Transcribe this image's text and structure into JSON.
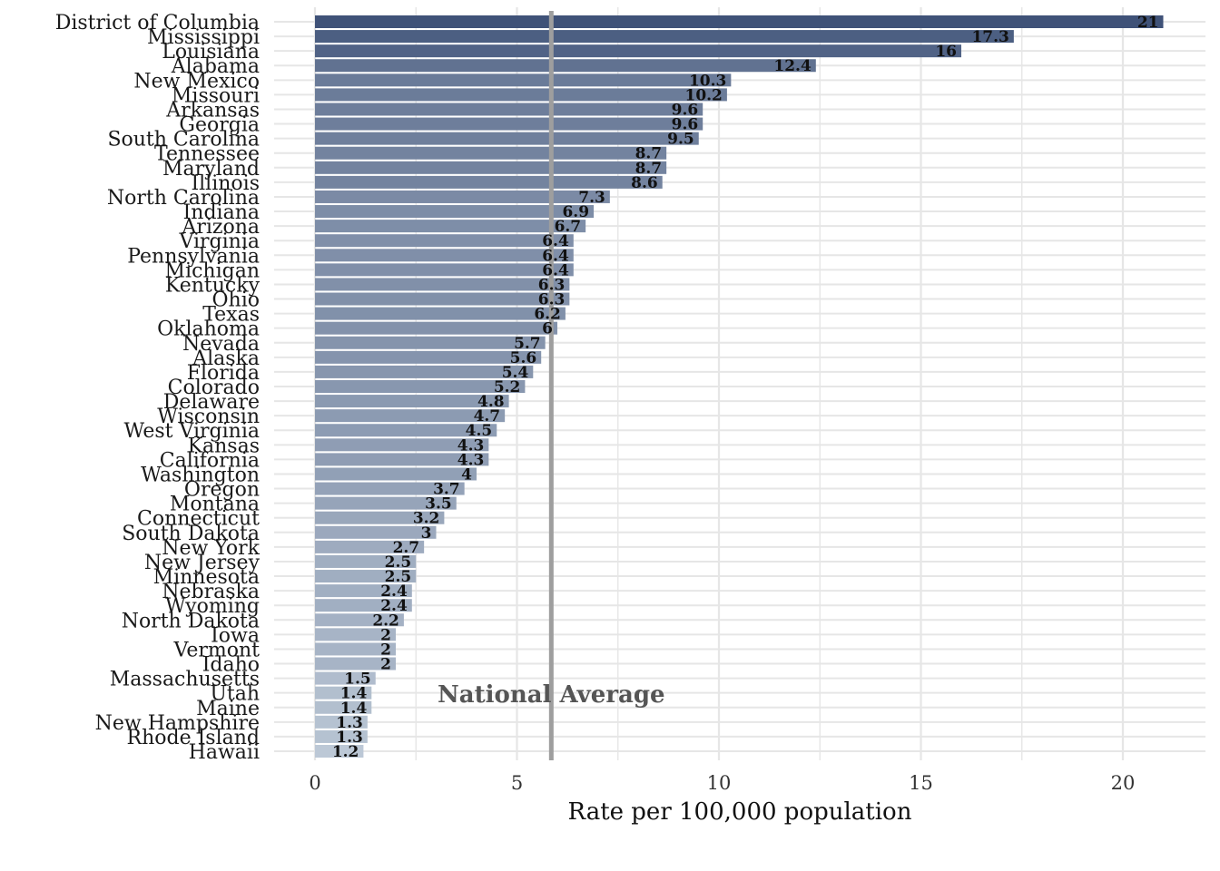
{
  "chart_data": {
    "type": "bar",
    "orientation": "horizontal",
    "xlabel": "Rate per 100,000 population",
    "ylabel": "",
    "title": "",
    "xlim": [
      0,
      21.9
    ],
    "xticks": [
      0,
      5,
      10,
      15,
      20
    ],
    "grid": true,
    "legend": "none",
    "colors": {
      "high": "#3f5278",
      "low": "#bcc8d6",
      "reference_line": "#9e9e9e",
      "grid": "#e6e6e6"
    },
    "reference_line": {
      "label": "National Average",
      "value": 5.85
    },
    "categories": [
      "District of Columbia",
      "Mississippi",
      "Louisiana",
      "Alabama",
      "New Mexico",
      "Missouri",
      "Arkansas",
      "Georgia",
      "South Carolina",
      "Tennessee",
      "Maryland",
      "Illinois",
      "North Carolina",
      "Indiana",
      "Arizona",
      "Virginia",
      "Pennsylvania",
      "Michigan",
      "Kentucky",
      "Ohio",
      "Texas",
      "Oklahoma",
      "Nevada",
      "Alaska",
      "Florida",
      "Colorado",
      "Delaware",
      "Wisconsin",
      "West Virginia",
      "Kansas",
      "California",
      "Washington",
      "Oregon",
      "Montana",
      "Connecticut",
      "South Dakota",
      "New York",
      "New Jersey",
      "Minnesota",
      "Nebraska",
      "Wyoming",
      "North Dakota",
      "Iowa",
      "Vermont",
      "Idaho",
      "Massachusetts",
      "Utah",
      "Maine",
      "New Hampshire",
      "Rhode Island",
      "Hawaii"
    ],
    "values": [
      21,
      17.3,
      16,
      12.4,
      10.3,
      10.2,
      9.6,
      9.6,
      9.5,
      8.7,
      8.7,
      8.6,
      7.3,
      6.9,
      6.7,
      6.4,
      6.4,
      6.4,
      6.3,
      6.3,
      6.2,
      6,
      5.7,
      5.6,
      5.4,
      5.2,
      4.8,
      4.7,
      4.5,
      4.3,
      4.3,
      4,
      3.7,
      3.5,
      3.2,
      3,
      2.7,
      2.5,
      2.5,
      2.4,
      2.4,
      2.2,
      2,
      2,
      2,
      1.5,
      1.4,
      1.4,
      1.3,
      1.3,
      1.2
    ],
    "value_labels": [
      "21",
      "17.3",
      "16",
      "12.4",
      "10.3",
      "10.2",
      "9.6",
      "9.6",
      "9.5",
      "8.7",
      "8.7",
      "8.6",
      "7.3",
      "6.9",
      "6.7",
      "6.4",
      "6.4",
      "6.4",
      "6.3",
      "6.3",
      "6.2",
      "6",
      "5.7",
      "5.6",
      "5.4",
      "5.2",
      "4.8",
      "4.7",
      "4.5",
      "4.3",
      "4.3",
      "4",
      "3.7",
      "3.5",
      "3.2",
      "3",
      "2.7",
      "2.5",
      "2.5",
      "2.4",
      "2.4",
      "2.2",
      "2",
      "2",
      "2",
      "1.5",
      "1.4",
      "1.4",
      "1.3",
      "1.3",
      "1.2"
    ]
  }
}
